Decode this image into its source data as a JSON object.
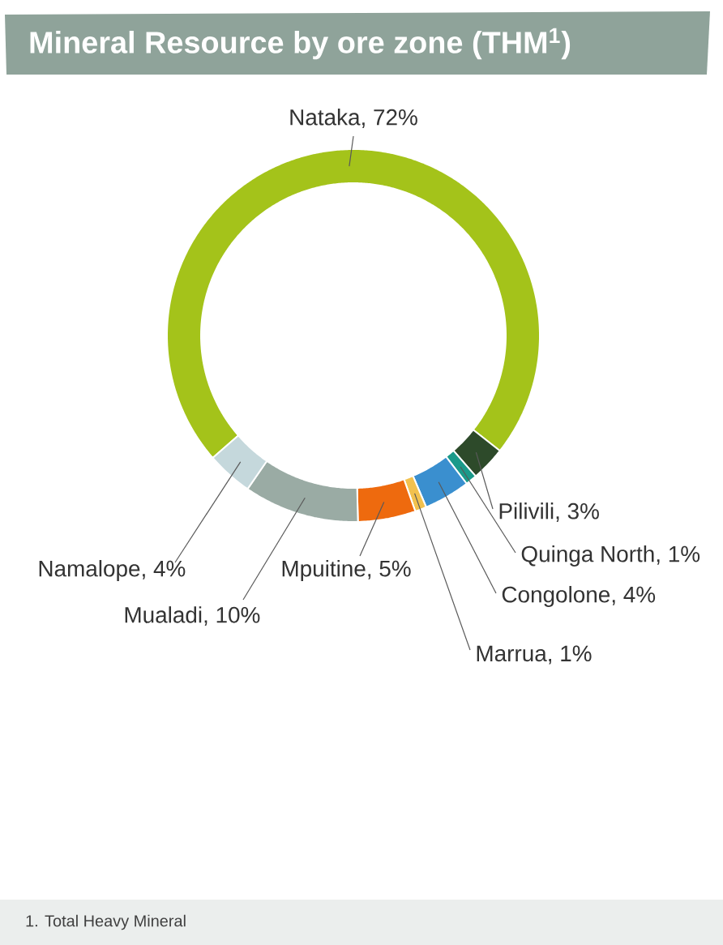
{
  "chart_data": {
    "type": "donut",
    "title": "Mineral Resource by ore zone (THM$^{1}$)",
    "categories": [
      "Nataka, 72%",
      "Pilivili, 3%",
      "Quinga North, 1%",
      "Congolone, 4%",
      "Marrua, 1%",
      "Mpuitine, 5%",
      "Mualadi, 10%",
      "Namalope, 4%"
    ],
    "values": [
      72,
      3,
      1,
      4,
      1,
      5,
      10,
      4
    ],
    "colors": [
      "#a4c31a",
      "#2d4a2a",
      "#1a9a8a",
      "#3a8fcf",
      "#f2c14e",
      "#ee6a0e",
      "#9aaba4",
      "#c5d8dc"
    ],
    "annotations": [
      "1. Total Heavy Mineral"
    ]
  }
}
